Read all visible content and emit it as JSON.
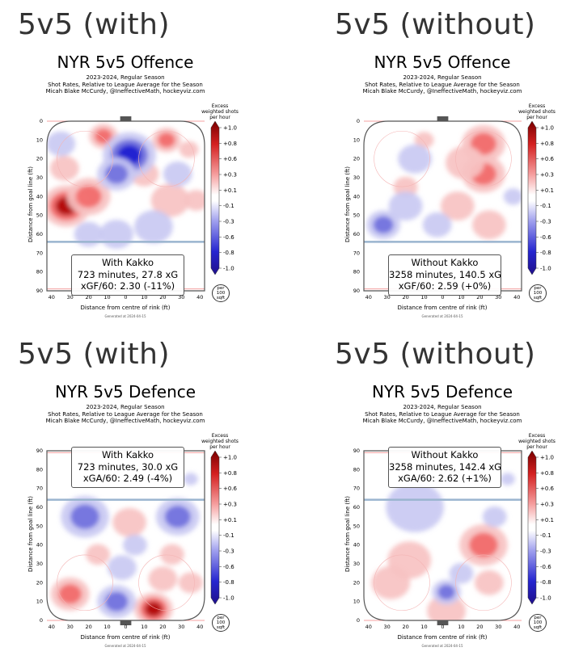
{
  "panels": [
    {
      "heading": "5v5 (with)",
      "title": "NYR 5v5 Offence",
      "subtitle_lines": [
        "2023-2024, Regular Season",
        "Shot Rates, Relative to League Average for the Season",
        "Micah Blake McCurdy, @IneffectiveMath, hockeyviz.com"
      ],
      "box": {
        "line1": "With Kakko",
        "line2": "723 minutes, 27.8 xG",
        "line3": "xGF/60: 2.30 (-11%)"
      },
      "generated": "Generated at 2024-04-15"
    },
    {
      "heading": "5v5 (without)",
      "title": "NYR 5v5 Offence",
      "subtitle_lines": [
        "2023-2024, Regular Season",
        "Shot Rates, Relative to League Average for the Season",
        "Micah Blake McCurdy, @IneffectiveMath, hockeyviz.com"
      ],
      "box": {
        "line1": "Without Kakko",
        "line2": "3258 minutes, 140.5 xG",
        "line3": "xGF/60: 2.59 (+0%)"
      },
      "generated": "Generated at 2024-04-15"
    },
    {
      "heading": "5v5 (with)",
      "title": "NYR 5v5 Defence",
      "subtitle_lines": [
        "2023-2024, Regular Season",
        "Shot Rates, Relative to League Average for the Season",
        "Micah Blake McCurdy, @IneffectiveMath, hockeyviz.com"
      ],
      "box": {
        "line1": "With Kakko",
        "line2": "723 minutes, 30.0 xG",
        "line3": "xGA/60: 2.49 (-4%)"
      },
      "generated": "Generated at 2024-04-15"
    },
    {
      "heading": "5v5 (without)",
      "title": "NYR 5v5 Defence",
      "subtitle_lines": [
        "2023-2024, Regular Season",
        "Shot Rates, Relative to League Average for the Season",
        "Micah Blake McCurdy, @IneffectiveMath, hockeyviz.com"
      ],
      "box": {
        "line1": "Without Kakko",
        "line2": "3258 minutes, 142.4 xG",
        "line3": "xGA/60: 2.62 (+1%)"
      },
      "generated": "Generated at 2024-04-15"
    }
  ],
  "colorbar": {
    "title_lines": [
      "Excess",
      "weighted shots",
      "per hour"
    ],
    "ticks": [
      "+1.0",
      "+0.8",
      "+0.6",
      "+0.3",
      "+0.1",
      "-0.1",
      "-0.3",
      "-0.6",
      "-0.8",
      "-1.0"
    ],
    "unit_lines": [
      "per",
      "100",
      "sqft"
    ]
  },
  "axes": {
    "ylabel": "Distance from goal line (ft)",
    "xlabel": "Distance from centre of rink (ft)",
    "xticks": [
      "40",
      "30",
      "20",
      "10",
      "0",
      "10",
      "20",
      "30",
      "40"
    ],
    "yticks_offence": [
      "0",
      "10",
      "20",
      "30",
      "40",
      "50",
      "60",
      "70",
      "80",
      "90"
    ],
    "yticks_defence": [
      "90",
      "80",
      "70",
      "60",
      "50",
      "40",
      "30",
      "20",
      "10",
      "0"
    ]
  },
  "colors": {
    "excess_high": "#b00000",
    "excess_mid_high": "#f26a6a",
    "excess_low_high": "#f7c2c2",
    "neutral": "#ffffff",
    "deficit_low": "#c9c9f2",
    "deficit_mid": "#7070dd",
    "deficit_high": "#1a1acf"
  },
  "chart_data": [
    {
      "type": "heatmap",
      "title": "NYR 5v5 Offence",
      "xlabel": "Distance from centre of rink (ft)",
      "ylabel": "Distance from goal line (ft)",
      "xlim": [
        -42.5,
        42.5
      ],
      "ylim": [
        0,
        90
      ],
      "color_scale": [
        -1.0,
        1.0
      ],
      "hotspots": [
        {
          "x": -32,
          "y": 45,
          "r": 10,
          "v": 0.9
        },
        {
          "x": -20,
          "y": 40,
          "r": 9,
          "v": 0.5
        },
        {
          "x": -33,
          "y": 25,
          "r": 6,
          "v": 0.3
        },
        {
          "x": -12,
          "y": 8,
          "r": 6,
          "v": 0.4
        },
        {
          "x": 22,
          "y": 10,
          "r": 6,
          "v": 0.4
        },
        {
          "x": 34,
          "y": 15,
          "r": 4,
          "v": 0.2
        },
        {
          "x": 10,
          "y": 28,
          "r": 6,
          "v": 0.2
        },
        {
          "x": 24,
          "y": 42,
          "r": 8,
          "v": 0.3
        },
        {
          "x": 38,
          "y": 42,
          "r": 5,
          "v": 0.3
        },
        {
          "x": 2,
          "y": 18,
          "r": 11,
          "v": -0.9
        },
        {
          "x": -5,
          "y": 28,
          "r": 8,
          "v": -0.4
        },
        {
          "x": -35,
          "y": 12,
          "r": 6,
          "v": -0.2
        },
        {
          "x": 28,
          "y": 28,
          "r": 6,
          "v": -0.2
        },
        {
          "x": 15,
          "y": 56,
          "r": 8,
          "v": -0.2
        },
        {
          "x": -5,
          "y": 60,
          "r": 7,
          "v": -0.2
        },
        {
          "x": -20,
          "y": 60,
          "r": 6,
          "v": -0.1
        }
      ]
    },
    {
      "type": "heatmap",
      "title": "NYR 5v5 Offence",
      "xlabel": "Distance from centre of rink (ft)",
      "ylabel": "Distance from goal line (ft)",
      "xlim": [
        -42.5,
        42.5
      ],
      "ylim": [
        0,
        90
      ],
      "color_scale": [
        -1.0,
        1.0
      ],
      "hotspots": [
        {
          "x": 22,
          "y": 12,
          "r": 9,
          "v": 0.5
        },
        {
          "x": 22,
          "y": 28,
          "r": 9,
          "v": 0.5
        },
        {
          "x": 12,
          "y": 22,
          "r": 8,
          "v": 0.2
        },
        {
          "x": -20,
          "y": 35,
          "r": 5,
          "v": 0.2
        },
        {
          "x": -10,
          "y": 10,
          "r": 4,
          "v": 0.2
        },
        {
          "x": 8,
          "y": 45,
          "r": 7,
          "v": 0.1
        },
        {
          "x": 25,
          "y": 55,
          "r": 7,
          "v": 0.2
        },
        {
          "x": -32,
          "y": 55,
          "r": 7,
          "v": -0.5
        },
        {
          "x": -15,
          "y": 20,
          "r": 7,
          "v": -0.2
        },
        {
          "x": -20,
          "y": 45,
          "r": 7,
          "v": -0.2
        },
        {
          "x": -3,
          "y": 55,
          "r": 6,
          "v": -0.2
        },
        {
          "x": 38,
          "y": 40,
          "r": 4,
          "v": -0.2
        }
      ]
    },
    {
      "type": "heatmap",
      "title": "NYR 5v5 Defence",
      "xlabel": "Distance from centre of rink (ft)",
      "ylabel": "Distance from goal line (ft)",
      "xlim": [
        -42.5,
        42.5
      ],
      "ylim": [
        0,
        90
      ],
      "color_scale": [
        -1.0,
        1.0
      ],
      "hotspots": [
        {
          "x": 15,
          "y": 6,
          "r": 8,
          "v": 1.0
        },
        {
          "x": 20,
          "y": 22,
          "r": 6,
          "v": 0.3
        },
        {
          "x": 25,
          "y": 35,
          "r": 5,
          "v": 0.3
        },
        {
          "x": -30,
          "y": 14,
          "r": 8,
          "v": 0.5
        },
        {
          "x": 35,
          "y": 20,
          "r": 5,
          "v": 0.2
        },
        {
          "x": -15,
          "y": 35,
          "r": 5,
          "v": 0.2
        },
        {
          "x": 2,
          "y": 52,
          "r": 7,
          "v": 0.2
        },
        {
          "x": -22,
          "y": 55,
          "r": 10,
          "v": -0.6
        },
        {
          "x": 28,
          "y": 55,
          "r": 9,
          "v": -0.6
        },
        {
          "x": -5,
          "y": 10,
          "r": 8,
          "v": -0.5
        },
        {
          "x": -2,
          "y": 28,
          "r": 6,
          "v": -0.3
        },
        {
          "x": 5,
          "y": 40,
          "r": 5,
          "v": -0.2
        },
        {
          "x": 35,
          "y": 75,
          "r": 3,
          "v": -0.2
        }
      ]
    },
    {
      "type": "heatmap",
      "title": "NYR 5v5 Defence",
      "xlabel": "Distance from centre of rink (ft)",
      "ylabel": "Distance from goal line (ft)",
      "xlim": [
        -42.5,
        42.5
      ],
      "ylim": [
        0,
        90
      ],
      "color_scale": [
        -1.0,
        1.0
      ],
      "hotspots": [
        {
          "x": 22,
          "y": 40,
          "r": 10,
          "v": 0.5
        },
        {
          "x": -18,
          "y": 32,
          "r": 9,
          "v": 0.3
        },
        {
          "x": 2,
          "y": 5,
          "r": 8,
          "v": 0.3
        },
        {
          "x": -28,
          "y": 20,
          "r": 8,
          "v": 0.2
        },
        {
          "x": 25,
          "y": 20,
          "r": 6,
          "v": 0.2
        },
        {
          "x": -15,
          "y": 60,
          "r": 12,
          "v": -0.3
        },
        {
          "x": 28,
          "y": 55,
          "r": 5,
          "v": -0.2
        },
        {
          "x": 2,
          "y": 15,
          "r": 6,
          "v": -0.4
        },
        {
          "x": 10,
          "y": 25,
          "r": 5,
          "v": -0.2
        },
        {
          "x": 35,
          "y": 75,
          "r": 3,
          "v": -0.2
        }
      ]
    }
  ]
}
